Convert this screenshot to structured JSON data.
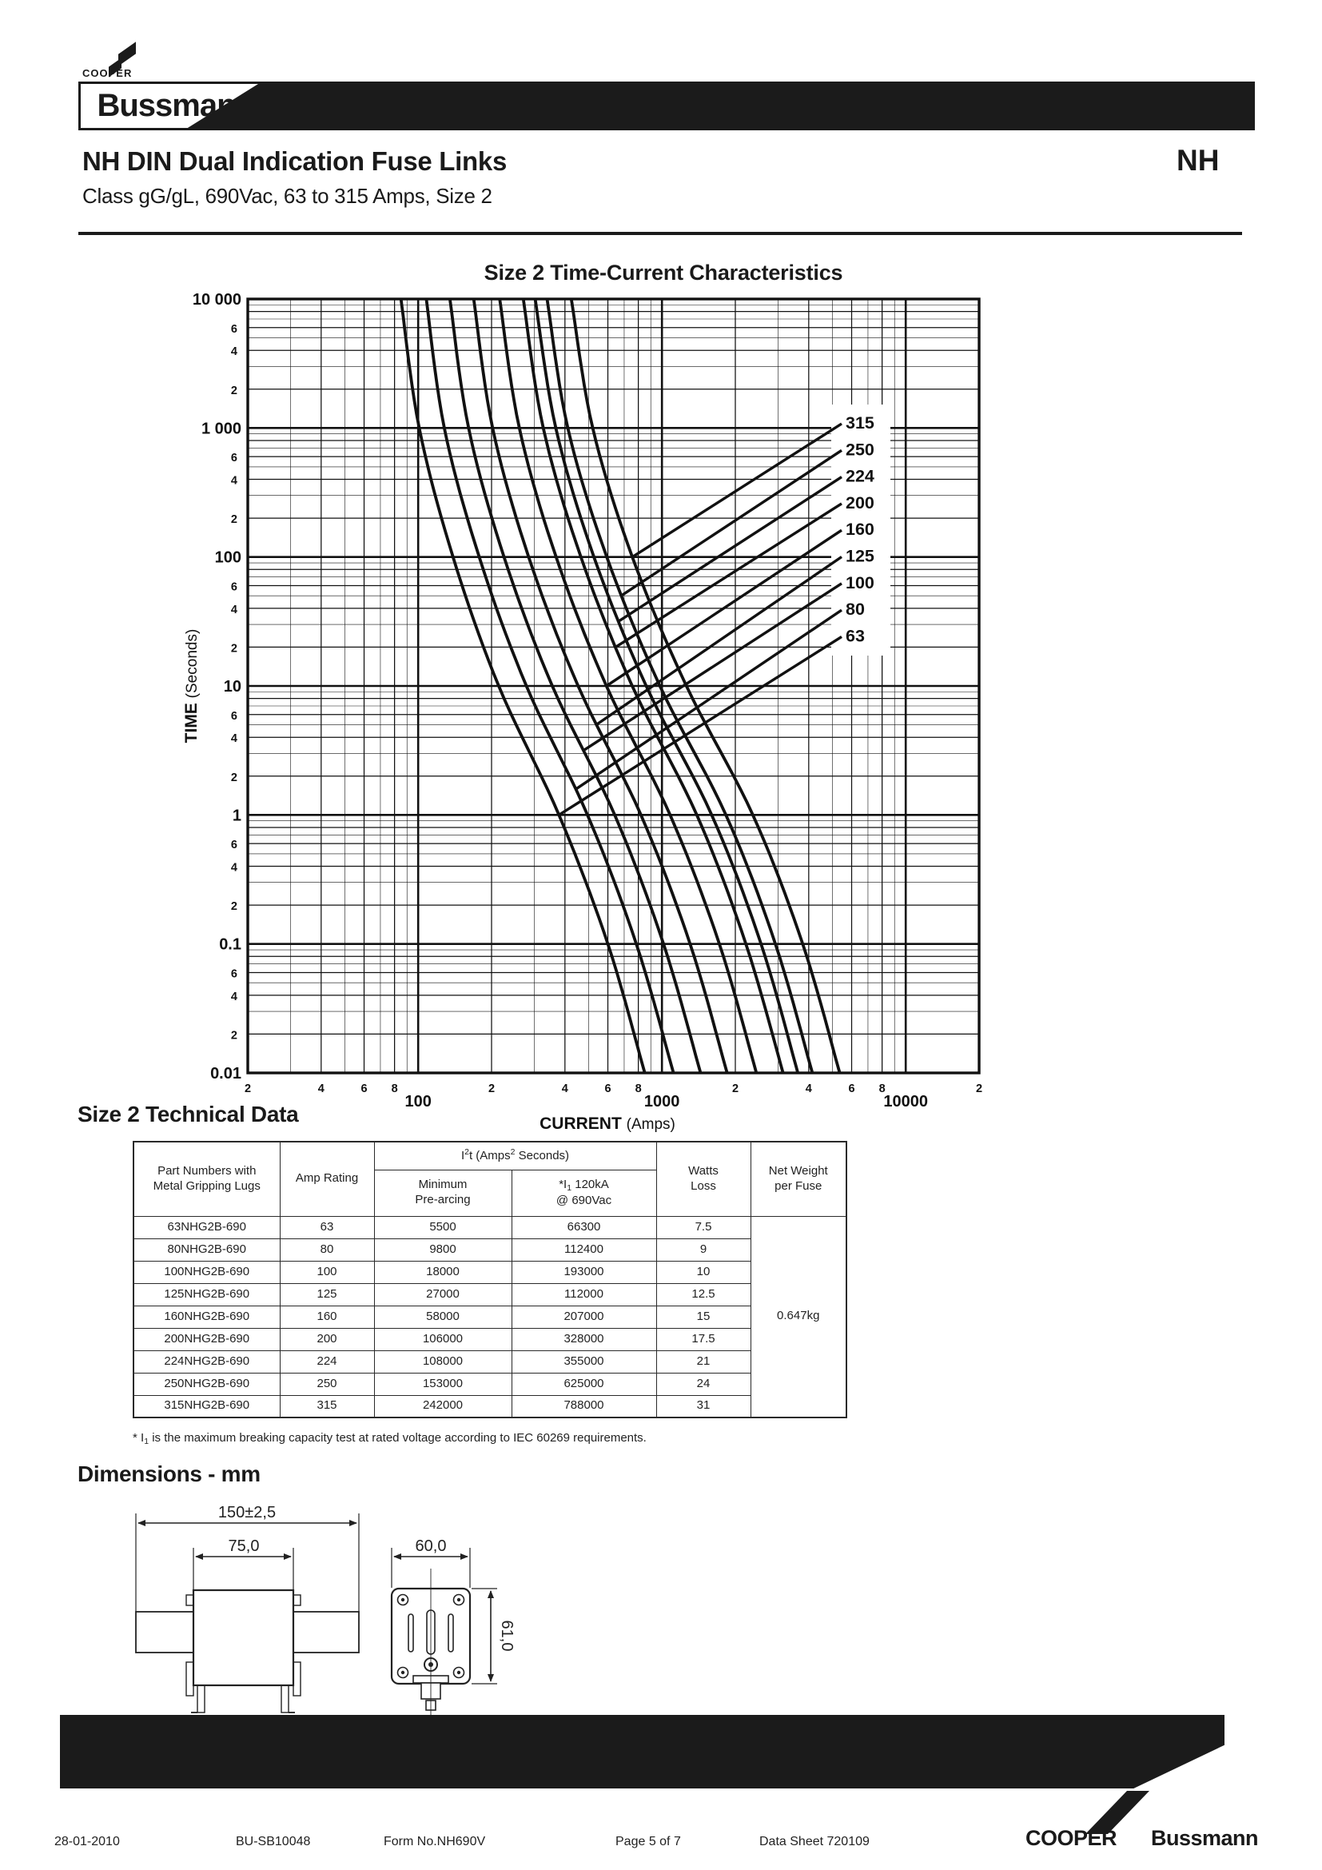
{
  "header": {
    "cooper": "COOPER",
    "bussmann": "Bussmann",
    "reg": "®",
    "nh": "NH",
    "title": "NH DIN Dual Indication Fuse Links",
    "subtitle": "Class gG/gL, 690Vac, 63 to 315 Amps, Size 2"
  },
  "chart_data": {
    "type": "line",
    "title": "Size 2 Time-Current Characteristics",
    "xlabel": "CURRENT (Amps)",
    "ylabel": "TIME (Seconds)",
    "x_scale": "log",
    "y_scale": "log",
    "xlim": [
      20,
      20000
    ],
    "ylim": [
      0.01,
      10000
    ],
    "grid": "log-log full grid",
    "legend_position": "labels with leader lines at right of curves",
    "x_decades": [
      {
        "label": "100",
        "I": 100
      },
      {
        "label": "1000",
        "I": 1000
      },
      {
        "label": "10000",
        "I": 10000
      }
    ],
    "y_decades": [
      {
        "label": "10 000",
        "t": 10000
      },
      {
        "label": "1 000",
        "t": 1000
      },
      {
        "label": "100",
        "t": 100
      },
      {
        "label": "10",
        "t": 10
      },
      {
        "label": "1",
        "t": 1
      },
      {
        "label": "0.1",
        "t": 0.1
      },
      {
        "label": "0.01",
        "t": 0.01
      }
    ],
    "x_minor_labels": [
      "2",
      "4",
      "6",
      "8"
    ],
    "y_minor_labels": [
      "6",
      "4",
      "2"
    ],
    "times": [
      10000,
      1000,
      100,
      10,
      1,
      0.1,
      0.01
    ],
    "series": [
      {
        "name": "63",
        "amps": 63,
        "currents": [
          85,
          101,
          139,
          214,
          378,
          600,
          850
        ]
      },
      {
        "name": "80",
        "amps": 80,
        "currents": [
          108,
          128,
          178,
          278,
          495,
          785,
          1115
        ]
      },
      {
        "name": "100",
        "amps": 100,
        "currents": [
          135,
          161,
          225,
          355,
          640,
          1015,
          1440
        ]
      },
      {
        "name": "125",
        "amps": 125,
        "currents": [
          169,
          202,
          284,
          453,
          820,
          1305,
          1850
        ]
      },
      {
        "name": "160",
        "amps": 160,
        "currents": [
          216,
          260,
          368,
          592,
          1080,
          1720,
          2440
        ]
      },
      {
        "name": "200",
        "amps": 200,
        "currents": [
          270,
          326,
          465,
          755,
          1390,
          2210,
          3140
        ]
      },
      {
        "name": "224",
        "amps": 224,
        "currents": [
          302,
          367,
          526,
          862,
          1600,
          2550,
          3610
        ]
      },
      {
        "name": "250",
        "amps": 250,
        "currents": [
          338,
          411,
          594,
          981,
          1830,
          2920,
          4140
        ]
      },
      {
        "name": "315",
        "amps": 315,
        "currents": [
          425,
          520,
          756,
          1260,
          2360,
          3780,
          5360
        ]
      }
    ],
    "curve_labels": [
      "315",
      "250",
      "224",
      "200",
      "160",
      "125",
      "100",
      "80",
      "63"
    ]
  },
  "table": {
    "heading": "Size 2 Technical Data",
    "col_part_l1": "Part Numbers with",
    "col_part_l2": "Metal Gripping Lugs",
    "col_amp": "Amp Rating",
    "i2t_a": "I",
    "i2t_sup1": "2",
    "i2t_b": "t (Amps",
    "i2t_sup2": "2",
    "i2t_c": " Seconds)",
    "col_min_l1": "Minimum",
    "col_min_l2": "Pre-arcing",
    "i1_a": "*I",
    "i1_sub": "1",
    "i1_b": " 120kA",
    "i1_l2": "@ 690Vac",
    "col_watts_l1": "Watts",
    "col_watts_l2": "Loss",
    "col_net_l1": "Net Weight",
    "col_net_l2": "per Fuse",
    "net_weight": "0.647kg",
    "rows": [
      [
        "63NHG2B-690",
        "63",
        "5500",
        "66300",
        "7.5"
      ],
      [
        "80NHG2B-690",
        "80",
        "9800",
        "112400",
        "9"
      ],
      [
        "100NHG2B-690",
        "100",
        "18000",
        "193000",
        "10"
      ],
      [
        "125NHG2B-690",
        "125",
        "27000",
        "112000",
        "12.5"
      ],
      [
        "160NHG2B-690",
        "160",
        "58000",
        "207000",
        "15"
      ],
      [
        "200NHG2B-690",
        "200",
        "106000",
        "328000",
        "17.5"
      ],
      [
        "224NHG2B-690",
        "224",
        "108000",
        "355000",
        "21"
      ],
      [
        "250NHG2B-690",
        "250",
        "153000",
        "625000",
        "24"
      ],
      [
        "315NHG2B-690",
        "315",
        "242000",
        "788000",
        "31"
      ]
    ],
    "footnote_pre": "* I",
    "footnote_sub": "1",
    "footnote_post": " is the maximum breaking capacity test at rated voltage according to IEC 60269 requirements."
  },
  "dimensions": {
    "heading": "Dimensions - mm",
    "overall_width": "150±2,5",
    "body_width": "75,0",
    "end_width": "60,0",
    "end_height": "61,0"
  },
  "footer": {
    "date": "28-01-2010",
    "code": "BU-SB10048",
    "form": "Form No.NH690V",
    "page": "Page 5 of 7",
    "sheet": "Data Sheet 720109",
    "brand_bold": "COOPER",
    "brand_rest": "Bussmann"
  }
}
